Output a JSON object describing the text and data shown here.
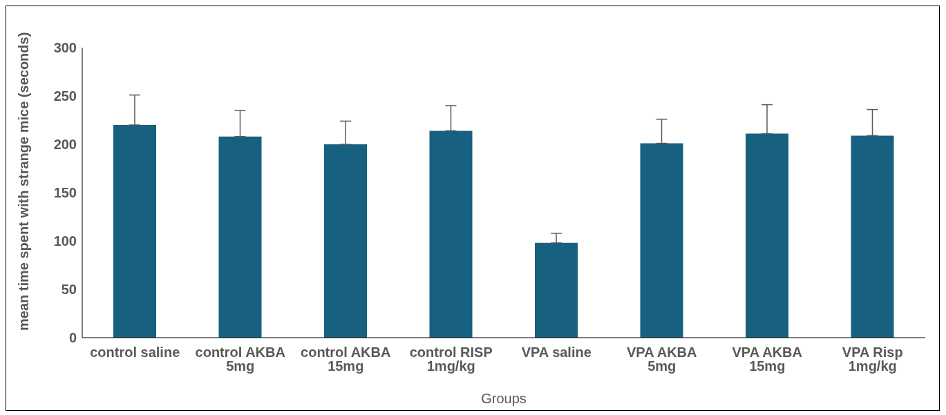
{
  "chart_data": {
    "type": "bar",
    "ylabel": "mean time spent with strange mice (seconds)",
    "xlabel": "Groups",
    "categories": [
      "control saline",
      "control AKBA 5mg",
      "control AKBA 15mg",
      "control RISP 1mg/kg",
      "VPA saline",
      "VPA AKBA 5mg",
      "VPA AKBA 15mg",
      "VPA Risp 1mg/kg"
    ],
    "values": [
      220,
      208,
      200,
      214,
      98,
      201,
      211,
      209
    ],
    "errors": [
      [
        220,
        251
      ],
      [
        208,
        235
      ],
      [
        200,
        224
      ],
      [
        214,
        240
      ],
      [
        98,
        108
      ],
      [
        201,
        226
      ],
      [
        211,
        241
      ],
      [
        209,
        236
      ]
    ],
    "color": "#17607f",
    "ylim": [
      0,
      300
    ],
    "yticks": [
      0,
      50,
      100,
      150,
      200,
      250,
      300
    ],
    "grid": false,
    "legend": false
  }
}
